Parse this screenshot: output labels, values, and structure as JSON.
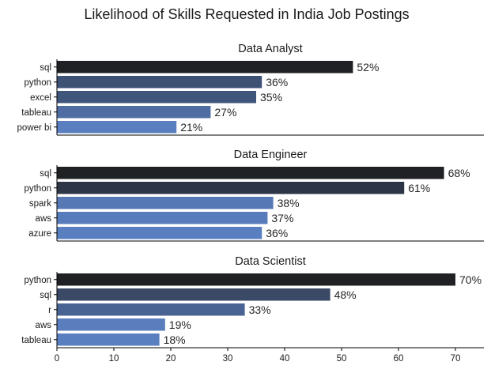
{
  "chart_data": {
    "type": "bar",
    "orientation": "horizontal",
    "title": "Likelihood  of Skills Requested in India Job Postings",
    "xlim": [
      0,
      75
    ],
    "xticks": [
      "0",
      "10",
      "20",
      "30",
      "40",
      "50",
      "60",
      "70"
    ],
    "grid": false,
    "legend": "none",
    "panels": [
      {
        "title": "Data Analyst",
        "categories": [
          "sql",
          "python",
          "excel",
          "tableau",
          "power bi"
        ],
        "values": [
          52,
          36,
          35,
          27,
          21
        ],
        "labels": [
          "52%",
          "36%",
          "35%",
          "27%",
          "21%"
        ]
      },
      {
        "title": "Data Engineer",
        "categories": [
          "sql",
          "python",
          "spark",
          "aws",
          "azure"
        ],
        "values": [
          68,
          61,
          38,
          37,
          36
        ],
        "labels": [
          "68%",
          "61%",
          "38%",
          "37%",
          "36%"
        ]
      },
      {
        "title": "Data Scientist",
        "categories": [
          "python",
          "sql",
          "r",
          "aws",
          "tableau"
        ],
        "values": [
          70,
          48,
          33,
          19,
          18
        ],
        "labels": [
          "70%",
          "48%",
          "33%",
          "19%",
          "18%"
        ]
      }
    ],
    "colors": {
      "palette_low": "#5a7fc0",
      "palette_high": "#202124",
      "spine": "#000000"
    }
  }
}
